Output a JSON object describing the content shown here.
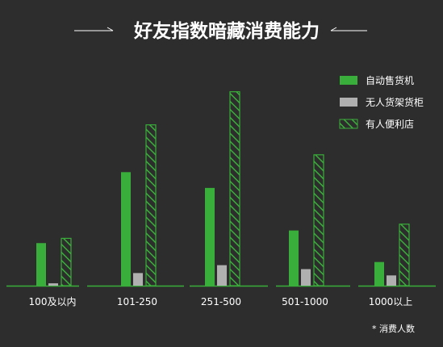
{
  "colors": {
    "background": "#2d2d2d",
    "vending": "#3aae3a",
    "shelf": "#b0b0b0",
    "store": "#3aae3a",
    "axis": "#3aae3a",
    "title_rule": "#ffffff"
  },
  "chart_data": {
    "type": "bar",
    "title": "好友指数暗藏消费能力",
    "xlabel": "",
    "ylabel": "",
    "categories": [
      "100及以内",
      "101-250",
      "251-500",
      "501-1000",
      "1000以上"
    ],
    "series": [
      {
        "name": "自动售货机",
        "pattern": "solid",
        "values": [
          27,
          72,
          62,
          35,
          15
        ]
      },
      {
        "name": "无人货架货柜",
        "pattern": "solid",
        "values": [
          1.5,
          8,
          13,
          10.5,
          6.5
        ]
      },
      {
        "name": "有人便利店",
        "pattern": "hatched",
        "values": [
          30,
          102,
          123,
          83,
          39
        ]
      }
    ],
    "ylim": [
      0,
      130
    ],
    "grid": false,
    "legend_position": "top-right",
    "note": "* 消费人数"
  }
}
